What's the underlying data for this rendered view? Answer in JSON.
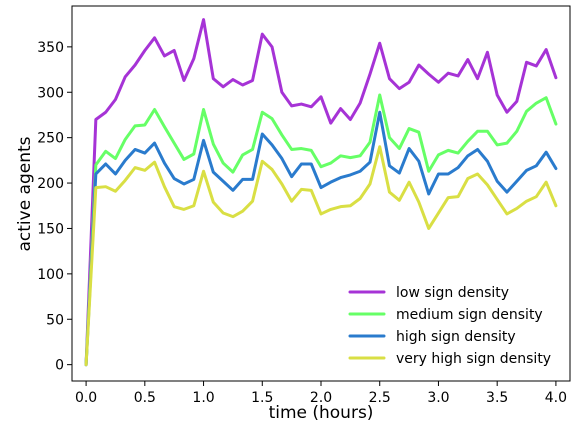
{
  "chart_data": {
    "type": "line",
    "xlabel": "time (hours)",
    "ylabel": "active agents",
    "xlim": [
      -0.12,
      4.12
    ],
    "ylim": [
      -18,
      395
    ],
    "xticks": [
      0.0,
      0.5,
      1.0,
      1.5,
      2.0,
      2.5,
      3.0,
      3.5,
      4.0
    ],
    "xtick_labels": [
      "0.0",
      "0.5",
      "1.0",
      "1.5",
      "2.0",
      "2.5",
      "3.0",
      "3.5",
      "4.0"
    ],
    "yticks": [
      0,
      50,
      100,
      150,
      200,
      250,
      300,
      350
    ],
    "ytick_labels": [
      "0",
      "50",
      "100",
      "150",
      "200",
      "250",
      "300",
      "350"
    ],
    "grid": false,
    "legend_position": "lower-right",
    "x": [
      0.0,
      0.083,
      0.167,
      0.25,
      0.333,
      0.417,
      0.5,
      0.583,
      0.667,
      0.75,
      0.833,
      0.917,
      1.0,
      1.083,
      1.167,
      1.25,
      1.333,
      1.417,
      1.5,
      1.583,
      1.667,
      1.75,
      1.833,
      1.917,
      2.0,
      2.083,
      2.167,
      2.25,
      2.333,
      2.417,
      2.5,
      2.583,
      2.667,
      2.75,
      2.833,
      2.917,
      3.0,
      3.083,
      3.167,
      3.25,
      3.333,
      3.417,
      3.5,
      3.583,
      3.667,
      3.75,
      3.833,
      3.917,
      4.0
    ],
    "series": [
      {
        "name": "low sign density",
        "color": "#a633d6",
        "values": [
          0,
          270,
          278,
          292,
          317,
          330,
          346,
          360,
          340,
          346,
          313,
          337,
          380,
          315,
          306,
          314,
          308,
          313,
          364,
          350,
          300,
          285,
          287,
          284,
          295,
          266,
          282,
          270,
          288,
          320,
          354,
          315,
          304,
          311,
          330,
          320,
          311,
          321,
          318,
          336,
          315,
          344,
          297,
          278,
          290,
          333,
          329,
          347,
          316
        ]
      },
      {
        "name": "medium sign density",
        "color": "#66ff66",
        "values": [
          0,
          220,
          235,
          227,
          248,
          263,
          264,
          281,
          262,
          244,
          226,
          232,
          281,
          243,
          222,
          212,
          231,
          237,
          278,
          271,
          253,
          237,
          238,
          236,
          218,
          222,
          230,
          228,
          230,
          245,
          297,
          250,
          238,
          260,
          256,
          213,
          231,
          236,
          233,
          246,
          257,
          257,
          242,
          244,
          257,
          279,
          288,
          294,
          265
        ]
      },
      {
        "name": "high sign density",
        "color": "#2a7bcd",
        "values": [
          0,
          210,
          221,
          210,
          225,
          237,
          233,
          244,
          222,
          205,
          199,
          204,
          247,
          212,
          202,
          192,
          204,
          204,
          254,
          242,
          227,
          207,
          221,
          221,
          195,
          201,
          206,
          209,
          213,
          223,
          278,
          219,
          211,
          238,
          224,
          188,
          210,
          210,
          217,
          230,
          237,
          224,
          202,
          190,
          202,
          214,
          219,
          234,
          216
        ]
      },
      {
        "name": "very high sign density",
        "color": "#d9df44",
        "values": [
          0,
          195,
          196,
          191,
          203,
          217,
          214,
          223,
          196,
          174,
          171,
          175,
          213,
          179,
          167,
          163,
          169,
          180,
          224,
          215,
          199,
          180,
          193,
          192,
          166,
          171,
          174,
          175,
          183,
          199,
          240,
          190,
          181,
          201,
          179,
          150,
          167,
          184,
          185,
          205,
          210,
          198,
          182,
          166,
          172,
          180,
          185,
          201,
          175
        ]
      }
    ]
  }
}
